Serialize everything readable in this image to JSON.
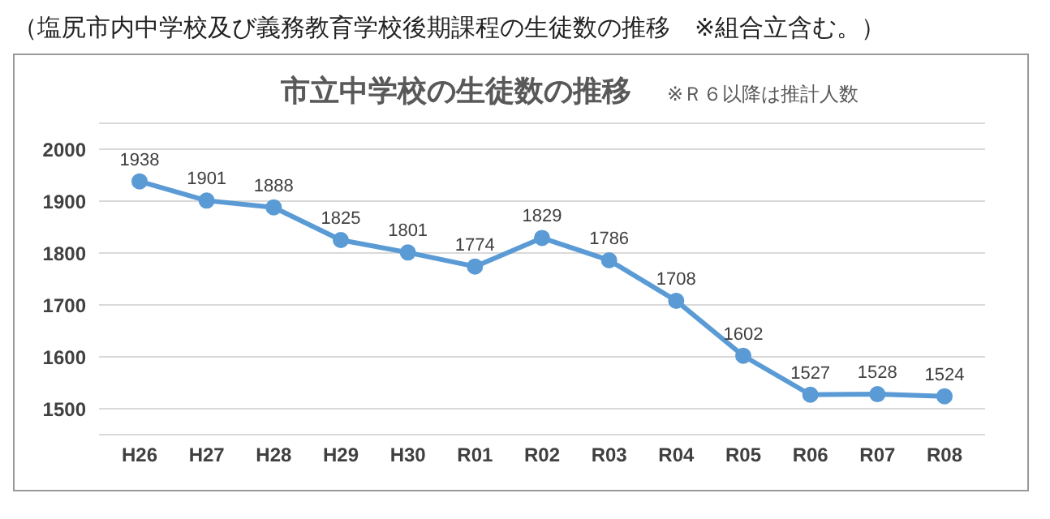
{
  "chart_data": {
    "type": "line",
    "title": "市立中学校の生徒数の推移",
    "subtitle": "※Ｒ６以降は推計人数",
    "annotations": [
      "（塩尻市内中学校及び義務教育学校後期課程の生徒数の推移　※組合立含む。）"
    ],
    "categories": [
      "H26",
      "H27",
      "H28",
      "H29",
      "H30",
      "R01",
      "R02",
      "R03",
      "R04",
      "R05",
      "R06",
      "R07",
      "R08"
    ],
    "series": [
      {
        "color": "#5b9bd5",
        "values": [
          1938,
          1901,
          1888,
          1825,
          1801,
          1774,
          1829,
          1786,
          1708,
          1602,
          1527,
          1528,
          1524
        ]
      }
    ],
    "ylim": [
      1450,
      2050
    ],
    "yticks": [
      1500,
      1600,
      1700,
      1800,
      1900,
      2000
    ],
    "grid": "y",
    "marker": "circle",
    "line_style": "solid",
    "data_labels": true
  }
}
